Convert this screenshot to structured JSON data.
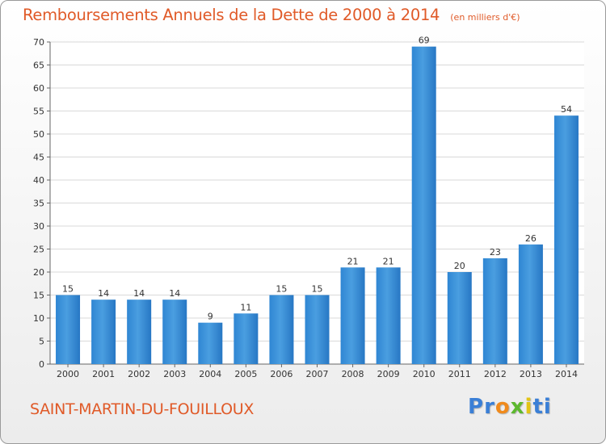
{
  "chart_data": {
    "type": "bar",
    "title": "Remboursements Annuels de la Dette de 2000 à 2014",
    "subtitle": "(en milliers d'€)",
    "categories": [
      "2000",
      "2001",
      "2002",
      "2003",
      "2004",
      "2005",
      "2006",
      "2007",
      "2008",
      "2009",
      "2010",
      "2011",
      "2012",
      "2013",
      "2014"
    ],
    "values": [
      15,
      14,
      14,
      14,
      9,
      11,
      15,
      15,
      21,
      21,
      69,
      20,
      23,
      26,
      54
    ],
    "xlabel": "",
    "ylabel": "",
    "ylim": [
      0,
      70
    ],
    "yticks": [
      0,
      5,
      10,
      15,
      20,
      25,
      30,
      35,
      40,
      45,
      50,
      55,
      60,
      65,
      70
    ],
    "grid": true,
    "bar_color": "#4a9ee0"
  },
  "footer": {
    "commune": "SAINT-MARTIN-DU-FOUILLOUX",
    "logo": "Proxiti",
    "logo_colors": [
      "#3a7fd6",
      "#3a7fd6",
      "#f08a1c",
      "#5cb82e",
      "#e2c416",
      "#3a7fd6",
      "#3a7fd6"
    ]
  },
  "colors": {
    "title": "#e05a28",
    "commune": "#e05a28"
  }
}
